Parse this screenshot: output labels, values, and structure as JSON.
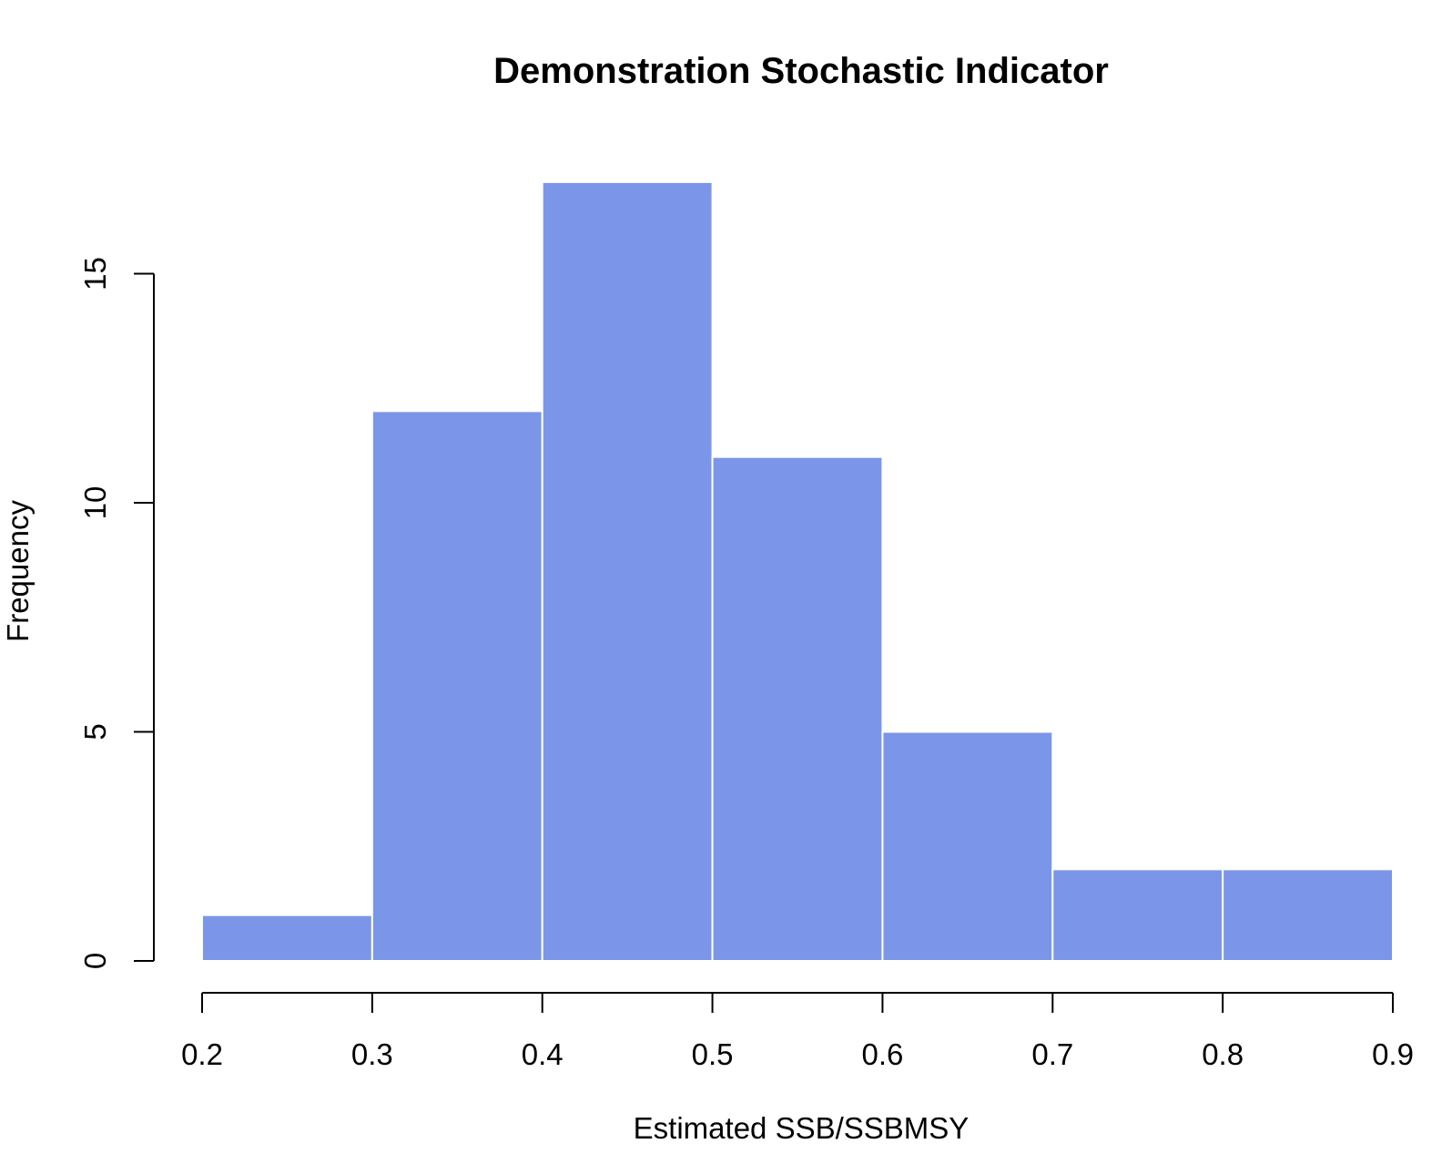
{
  "chart_data": {
    "type": "bar",
    "title": "Demonstration Stochastic Indicator",
    "xlabel": "Estimated SSB/SSBMSY",
    "ylabel": "Frequency",
    "bins": [
      {
        "start": 0.2,
        "end": 0.3,
        "count": 1
      },
      {
        "start": 0.3,
        "end": 0.4,
        "count": 12
      },
      {
        "start": 0.4,
        "end": 0.5,
        "count": 17
      },
      {
        "start": 0.5,
        "end": 0.6,
        "count": 11
      },
      {
        "start": 0.6,
        "end": 0.7,
        "count": 5
      },
      {
        "start": 0.7,
        "end": 0.8,
        "count": 2
      },
      {
        "start": 0.8,
        "end": 0.9,
        "count": 2
      }
    ],
    "xlim": [
      0.2,
      0.9
    ],
    "ylim": [
      0,
      17
    ],
    "xticks": [
      "0.2",
      "0.3",
      "0.4",
      "0.5",
      "0.6",
      "0.7",
      "0.8",
      "0.9"
    ],
    "yticks": [
      "0",
      "5",
      "10",
      "15"
    ],
    "grid": false,
    "bar_color": "#7B96E8",
    "bar_edge_color": "#FFFFFF"
  }
}
